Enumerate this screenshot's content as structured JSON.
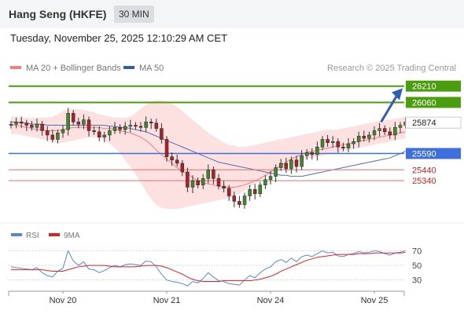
{
  "header": {
    "instrument": "Hang Seng (HKFE)",
    "timeframe": "30 MIN",
    "datetime": "Tuesday, November 25, 2025 12:10:29 AM CET"
  },
  "colors": {
    "green": "#4a9e0e",
    "blue": "#3d6fe0",
    "red": "#e07070",
    "arrow": "#2c5fb5",
    "candle_up": "#3c8a2e",
    "candle_down": "#b02028",
    "band_fill": "#fddcdc",
    "ma20": "#f08080",
    "ma50": "#5070b0",
    "rsi": "#5b86d6",
    "rsi_ma": "#e02020"
  },
  "chart_data": [
    {
      "type": "candlestick",
      "legend": [
        {
          "name": "MA 20 + Bollinger Bands",
          "color": "#f08080"
        },
        {
          "name": "MA 50",
          "color": "#385b9e"
        }
      ],
      "source": "Research © 2025 Trading Central",
      "ylim": [
        24980,
        26280
      ],
      "x_tick_labels": [
        {
          "label": "Nov 20",
          "index": 10
        },
        {
          "label": "Nov 21",
          "index": 30
        },
        {
          "label": "Nov 24",
          "index": 50
        },
        {
          "label": "Nov 25",
          "index": 70
        }
      ],
      "last_price": 25874,
      "levels": [
        {
          "value": 26210,
          "label": "26210",
          "color": "#4a9e0e",
          "style": "box"
        },
        {
          "value": 26060,
          "label": "26060",
          "color": "#4a9e0e",
          "style": "box"
        },
        {
          "value": 25590,
          "label": "25590",
          "color": "#3d6fe0",
          "style": "box"
        },
        {
          "value": 25440,
          "label": "25440",
          "color": "#e07070",
          "style": "text"
        },
        {
          "value": 25340,
          "label": "25340",
          "color": "#e07070",
          "style": "text"
        }
      ],
      "arrow": {
        "from_index": 71,
        "from_value": 25880,
        "to_value": 26190
      },
      "closes": [
        25860,
        25880,
        25870,
        25850,
        25830,
        25860,
        25800,
        25760,
        25720,
        25780,
        25810,
        25960,
        25880,
        25860,
        25900,
        25800,
        25790,
        25740,
        25760,
        25800,
        25830,
        25810,
        25840,
        25850,
        25840,
        25830,
        25880,
        25870,
        25820,
        25720,
        25560,
        25530,
        25500,
        25420,
        25280,
        25340,
        25300,
        25360,
        25440,
        25360,
        25290,
        25270,
        25200,
        25150,
        25120,
        25200,
        25260,
        25220,
        25300,
        25350,
        25380,
        25460,
        25500,
        25450,
        25530,
        25470,
        25570,
        25600,
        25580,
        25650,
        25720,
        25690,
        25700,
        25650,
        25640,
        25680,
        25700,
        25750,
        25730,
        25760,
        25800,
        25820,
        25790,
        25760,
        25830,
        25850,
        25880
      ],
      "ma20": [
        25850,
        25850,
        25840,
        25830,
        25820,
        25810,
        25810,
        25800,
        25800,
        25800,
        25810,
        25820,
        25830,
        25830,
        25830,
        25830,
        25830,
        25830,
        25820,
        25820,
        25810,
        25800,
        25790,
        25780,
        25760,
        25740,
        25710,
        25670,
        25620,
        25580,
        25540,
        25500,
        25460,
        25430,
        25400,
        25370,
        25340,
        25320,
        25310,
        25300,
        25290,
        25280,
        25280,
        25280,
        25290,
        25300,
        25320,
        25340,
        25360,
        25390,
        25420,
        25450,
        25480,
        25510,
        25540,
        25560,
        25580,
        25600,
        25610,
        25620,
        25630,
        25640,
        25650,
        25660,
        25670,
        25680,
        25690,
        25700,
        25710,
        25720,
        25730,
        25740,
        25750,
        25760,
        25770,
        25780,
        25790
      ],
      "band_upper": [
        25930,
        25930,
        25920,
        25920,
        25920,
        25920,
        25920,
        25920,
        25930,
        25950,
        25980,
        26000,
        26000,
        26000,
        25990,
        25980,
        25970,
        25950,
        25940,
        25930,
        25920,
        25920,
        25920,
        25930,
        25960,
        26000,
        26040,
        26070,
        26080,
        26080,
        26070,
        26050,
        26020,
        25980,
        25940,
        25900,
        25860,
        25820,
        25780,
        25750,
        25720,
        25690,
        25670,
        25660,
        25650,
        25650,
        25660,
        25670,
        25680,
        25690,
        25700,
        25710,
        25720,
        25730,
        25740,
        25750,
        25760,
        25770,
        25780,
        25790,
        25800,
        25810,
        25810,
        25810,
        25820,
        25830,
        25840,
        25850,
        25860,
        25870,
        25880,
        25890,
        25900,
        25900,
        25910,
        25920,
        25930
      ],
      "band_lower": [
        25770,
        25770,
        25760,
        25750,
        25740,
        25730,
        25720,
        25710,
        25700,
        25690,
        25690,
        25700,
        25710,
        25720,
        25730,
        25740,
        25740,
        25730,
        25710,
        25680,
        25640,
        25590,
        25530,
        25470,
        25400,
        25320,
        25240,
        25170,
        25120,
        25090,
        25080,
        25080,
        25080,
        25090,
        25100,
        25110,
        25120,
        25130,
        25140,
        25150,
        25160,
        25170,
        25180,
        25200,
        25220,
        25250,
        25280,
        25310,
        25340,
        25370,
        25400,
        25420,
        25440,
        25460,
        25480,
        25500,
        25520,
        25540,
        25550,
        25560,
        25570,
        25580,
        25590,
        25600,
        25610,
        25620,
        25630,
        25640,
        25650,
        25660,
        25670,
        25680,
        25690,
        25700,
        25710,
        25720,
        25730
      ],
      "ma50": [
        25880,
        25880,
        25870,
        25870,
        25860,
        25860,
        25860,
        25850,
        25850,
        25850,
        25850,
        25850,
        25850,
        25850,
        25850,
        25850,
        25850,
        25850,
        25850,
        25840,
        25840,
        25830,
        25830,
        25820,
        25810,
        25800,
        25790,
        25770,
        25750,
        25730,
        25710,
        25690,
        25670,
        25650,
        25630,
        25610,
        25590,
        25570,
        25550,
        25530,
        25510,
        25500,
        25490,
        25480,
        25470,
        25460,
        25450,
        25440,
        25430,
        25420,
        25410,
        25400,
        25390,
        25390,
        25380,
        25380,
        25380,
        25390,
        25400,
        25410,
        25420,
        25430,
        25440,
        25450,
        25460,
        25470,
        25480,
        25490,
        25500,
        25510,
        25520,
        25530,
        25540,
        25550,
        25570,
        25590,
        25610
      ]
    },
    {
      "type": "line",
      "series": [
        {
          "name": "RSI",
          "color": "#5b86d6",
          "values": [
            48,
            47,
            46,
            45,
            44,
            47,
            40,
            36,
            34,
            42,
            46,
            70,
            56,
            50,
            55,
            45,
            44,
            40,
            43,
            47,
            50,
            48,
            51,
            52,
            51,
            50,
            56,
            55,
            48,
            38,
            30,
            28,
            27,
            25,
            22,
            28,
            26,
            32,
            40,
            34,
            29,
            28,
            25,
            24,
            23,
            30,
            36,
            33,
            40,
            45,
            48,
            55,
            58,
            54,
            60,
            55,
            62,
            64,
            62,
            66,
            70,
            67,
            68,
            63,
            62,
            65,
            66,
            69,
            67,
            68,
            70,
            69,
            66,
            64,
            67,
            68,
            70
          ]
        },
        {
          "name": "9MA",
          "color": "#e02020",
          "values": [
            44,
            44,
            44,
            44,
            44,
            44,
            44,
            43,
            42,
            42,
            42,
            44,
            46,
            48,
            49,
            50,
            50,
            50,
            50,
            49,
            48,
            48,
            48,
            48,
            48,
            49,
            50,
            50,
            50,
            49,
            47,
            44,
            41,
            38,
            34,
            31,
            29,
            28,
            28,
            28,
            28,
            29,
            29,
            29,
            29,
            29,
            29,
            30,
            31,
            33,
            35,
            38,
            42,
            45,
            48,
            51,
            54,
            57,
            59,
            61,
            62,
            63,
            64,
            65,
            65,
            65,
            65,
            66,
            66,
            66,
            67,
            67,
            67,
            67,
            67,
            67,
            68
          ]
        }
      ],
      "ylim": [
        20,
        78
      ],
      "y_ticks": [
        30,
        50,
        70
      ]
    }
  ]
}
